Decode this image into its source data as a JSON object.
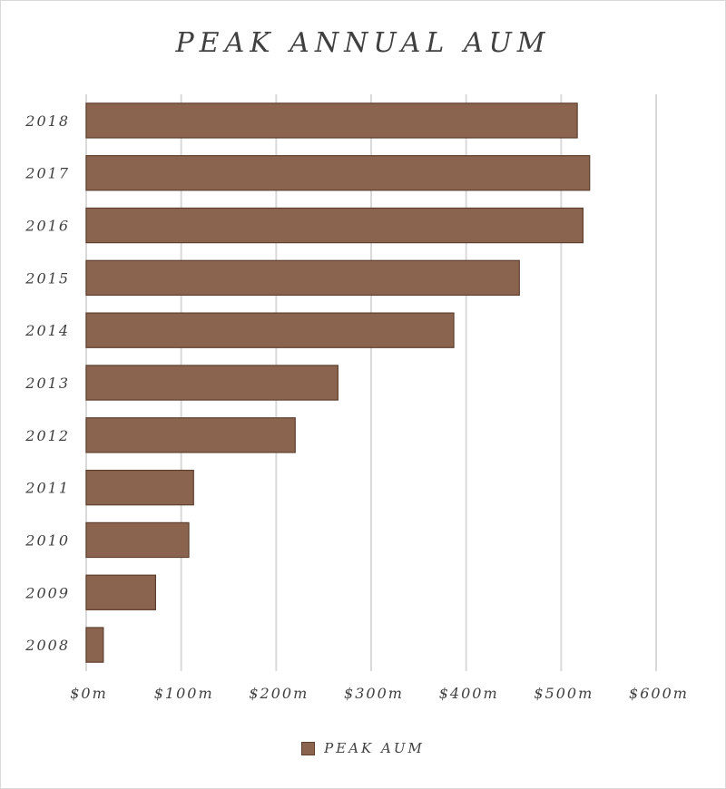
{
  "chart_data": {
    "type": "bar",
    "orientation": "horizontal",
    "title": "PEAK ANNUAL AUM",
    "categories": [
      "2018",
      "2017",
      "2016",
      "2015",
      "2014",
      "2013",
      "2012",
      "2011",
      "2010",
      "2009",
      "2008"
    ],
    "series": [
      {
        "name": "PEAK AUM",
        "values": [
          517,
          530,
          523,
          456,
          387,
          265,
          220,
          113,
          108,
          73,
          18
        ]
      }
    ],
    "x_ticks": [
      "$0m",
      "$100m",
      "$200m",
      "$300m",
      "$400m",
      "$500m",
      "$600m"
    ],
    "xlim": [
      0,
      600
    ],
    "grid": true,
    "legend_position": "bottom",
    "colors": {
      "bar": "#8B6450",
      "bar_border": "#5e3f2e",
      "grid": "#d9d9d9",
      "text": "#404040"
    }
  }
}
